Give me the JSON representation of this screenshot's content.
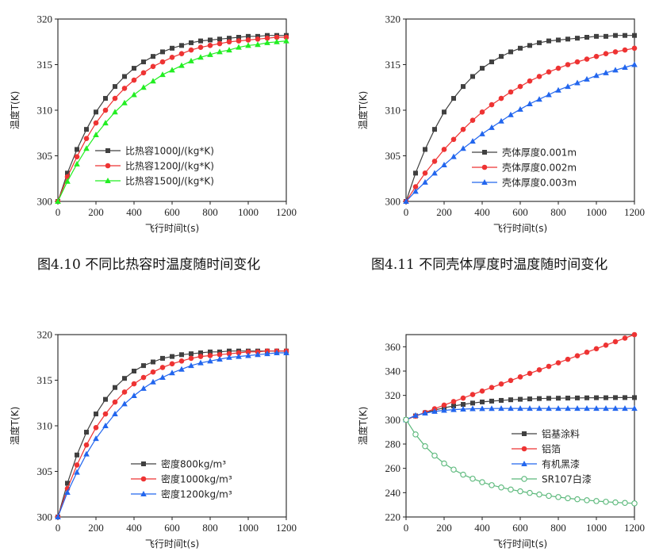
{
  "captions": [
    "图4.10 不同比热容时温度随时间变化",
    "图4.11 不同壳体厚度时温度随时间变化"
  ],
  "colors": {
    "black": "#404040",
    "red": "#ee3333",
    "green": "#22ee22",
    "blue": "#2266ee",
    "mint": "#5ab87a"
  },
  "chart_data": [
    {
      "type": "line",
      "xlabel": "飞行时间t(s)",
      "ylabel": "温度T(K)",
      "xlim": [
        0,
        1200
      ],
      "ylim": [
        300,
        320
      ],
      "xticks": [
        0,
        200,
        400,
        600,
        800,
        1000,
        1200
      ],
      "yticks": [
        300,
        305,
        310,
        315,
        320
      ],
      "legend_position": "bottom-right",
      "x": [
        0,
        50,
        100,
        150,
        200,
        250,
        300,
        350,
        400,
        450,
        500,
        550,
        600,
        650,
        700,
        750,
        800,
        850,
        900,
        950,
        1000,
        1050,
        1100,
        1150,
        1200
      ],
      "series": [
        {
          "name": "比热容1000J/(kg*K)",
          "color": "black",
          "marker": "square",
          "values": [
            300.0,
            303.1,
            305.7,
            307.9,
            309.8,
            311.3,
            312.6,
            313.7,
            314.6,
            315.3,
            315.9,
            316.4,
            316.8,
            317.1,
            317.4,
            317.6,
            317.7,
            317.8,
            317.9,
            318.0,
            318.1,
            318.1,
            318.2,
            318.2,
            318.2
          ]
        },
        {
          "name": "比热容1200J/(kg*K)",
          "color": "red",
          "marker": "circle",
          "values": [
            300.0,
            302.7,
            304.9,
            306.9,
            308.6,
            310.0,
            311.3,
            312.4,
            313.3,
            314.1,
            314.8,
            315.3,
            315.8,
            316.2,
            316.6,
            316.9,
            317.1,
            317.3,
            317.5,
            317.6,
            317.7,
            317.8,
            317.9,
            318.0,
            318.0
          ]
        },
        {
          "name": "比热容1500J/(kg*K)",
          "color": "green",
          "marker": "triangle",
          "values": [
            300.0,
            302.2,
            304.1,
            305.8,
            307.3,
            308.6,
            309.8,
            310.8,
            311.7,
            312.5,
            313.2,
            313.9,
            314.4,
            314.9,
            315.4,
            315.8,
            316.1,
            316.4,
            316.6,
            316.9,
            317.1,
            317.2,
            317.4,
            317.5,
            317.6
          ]
        }
      ]
    },
    {
      "type": "line",
      "xlabel": "飞行时间t(s)",
      "ylabel": "温度T(K)",
      "xlim": [
        0,
        1200
      ],
      "ylim": [
        300,
        320
      ],
      "xticks": [
        0,
        200,
        400,
        600,
        800,
        1000,
        1200
      ],
      "yticks": [
        300,
        305,
        310,
        315,
        320
      ],
      "legend_position": "bottom-right",
      "x": [
        0,
        50,
        100,
        150,
        200,
        250,
        300,
        350,
        400,
        450,
        500,
        550,
        600,
        650,
        700,
        750,
        800,
        850,
        900,
        950,
        1000,
        1050,
        1100,
        1150,
        1200
      ],
      "series": [
        {
          "name": "壳体厚度0.001m",
          "color": "black",
          "marker": "square",
          "values": [
            300.0,
            303.1,
            305.7,
            307.9,
            309.8,
            311.3,
            312.6,
            313.7,
            314.6,
            315.3,
            315.9,
            316.4,
            316.8,
            317.1,
            317.4,
            317.6,
            317.7,
            317.8,
            317.9,
            318.0,
            318.1,
            318.1,
            318.2,
            318.2,
            318.2
          ]
        },
        {
          "name": "壳体厚度0.002m",
          "color": "red",
          "marker": "circle",
          "values": [
            300.0,
            301.6,
            303.1,
            304.4,
            305.7,
            306.8,
            307.9,
            308.9,
            309.8,
            310.6,
            311.3,
            312.0,
            312.6,
            313.2,
            313.7,
            314.2,
            314.6,
            315.0,
            315.3,
            315.6,
            315.9,
            316.2,
            316.4,
            316.6,
            316.8
          ]
        },
        {
          "name": "壳体厚度0.003m",
          "color": "blue",
          "marker": "triangle",
          "values": [
            300.0,
            301.1,
            302.1,
            303.1,
            304.0,
            304.9,
            305.8,
            306.6,
            307.4,
            308.1,
            308.8,
            309.5,
            310.1,
            310.7,
            311.2,
            311.7,
            312.2,
            312.6,
            313.0,
            313.4,
            313.8,
            314.1,
            314.4,
            314.7,
            315.0
          ]
        }
      ]
    },
    {
      "type": "line",
      "xlabel": "飞行时间t(s)",
      "ylabel": "温度T(K)",
      "xlim": [
        0,
        1200
      ],
      "ylim": [
        300,
        320
      ],
      "xticks": [
        0,
        200,
        400,
        600,
        800,
        1000,
        1200
      ],
      "yticks": [
        300,
        305,
        310,
        315,
        320
      ],
      "legend_position": "bottom-right",
      "x": [
        0,
        50,
        100,
        150,
        200,
        250,
        300,
        350,
        400,
        450,
        500,
        550,
        600,
        650,
        700,
        750,
        800,
        850,
        900,
        950,
        1000,
        1050,
        1100,
        1150,
        1200
      ],
      "series": [
        {
          "name": "密度800kg/m³",
          "color": "black",
          "marker": "square",
          "values": [
            300.0,
            303.7,
            306.8,
            309.3,
            311.3,
            312.9,
            314.2,
            315.2,
            316.0,
            316.6,
            317.0,
            317.4,
            317.6,
            317.8,
            317.9,
            318.0,
            318.1,
            318.1,
            318.2,
            318.2,
            318.2,
            318.2,
            318.2,
            318.2,
            318.2
          ]
        },
        {
          "name": "密度1000kg/m³",
          "color": "red",
          "marker": "circle",
          "values": [
            300.0,
            303.1,
            305.7,
            307.9,
            309.8,
            311.3,
            312.6,
            313.7,
            314.6,
            315.3,
            315.9,
            316.4,
            316.8,
            317.1,
            317.4,
            317.6,
            317.7,
            317.8,
            317.9,
            318.0,
            318.1,
            318.1,
            318.2,
            318.2,
            318.2
          ]
        },
        {
          "name": "密度1200kg/m³",
          "color": "blue",
          "marker": "triangle",
          "values": [
            300.0,
            302.7,
            304.9,
            306.9,
            308.6,
            310.0,
            311.3,
            312.4,
            313.3,
            314.1,
            314.8,
            315.3,
            315.8,
            316.2,
            316.6,
            316.9,
            317.1,
            317.3,
            317.5,
            317.6,
            317.7,
            317.8,
            317.9,
            318.0,
            318.0
          ]
        }
      ]
    },
    {
      "type": "line",
      "xlabel": "飞行时间t(s)",
      "ylabel": "温度T(K)",
      "xlim": [
        0,
        1200
      ],
      "ylim": [
        220,
        370
      ],
      "xticks": [
        0,
        200,
        400,
        600,
        800,
        1000,
        1200
      ],
      "yticks": [
        220,
        240,
        260,
        280,
        300,
        320,
        340,
        360
      ],
      "legend_position": "bottom-right",
      "x": [
        0,
        50,
        100,
        150,
        200,
        250,
        300,
        350,
        400,
        450,
        500,
        550,
        600,
        650,
        700,
        750,
        800,
        850,
        900,
        950,
        1000,
        1050,
        1100,
        1150,
        1200
      ],
      "series": [
        {
          "name": "铝基涂料",
          "color": "black",
          "marker": "square",
          "values": [
            300.0,
            303.1,
            305.7,
            307.9,
            309.8,
            311.3,
            312.6,
            313.7,
            314.6,
            315.3,
            315.9,
            316.4,
            316.8,
            317.1,
            317.4,
            317.6,
            317.7,
            317.8,
            317.9,
            318.0,
            318.1,
            318.1,
            318.2,
            318.2,
            318.2
          ]
        },
        {
          "name": "铝箔",
          "color": "red",
          "marker": "circle",
          "values": [
            300.0,
            303.0,
            306.0,
            309.0,
            312.0,
            314.9,
            317.8,
            320.7,
            323.6,
            326.5,
            329.4,
            332.3,
            335.2,
            338.1,
            341.0,
            343.9,
            346.8,
            349.7,
            352.6,
            355.5,
            358.4,
            361.3,
            364.2,
            367.1,
            370.0
          ]
        },
        {
          "name": "有机黑漆",
          "color": "blue",
          "marker": "triangle",
          "values": [
            300.0,
            303.6,
            305.4,
            306.8,
            307.7,
            308.3,
            308.7,
            309.0,
            309.1,
            309.2,
            309.3,
            309.3,
            309.3,
            309.3,
            309.3,
            309.3,
            309.3,
            309.3,
            309.3,
            309.3,
            309.3,
            309.3,
            309.3,
            309.3,
            309.3
          ]
        },
        {
          "name": "SR107白漆",
          "color": "mint",
          "marker": "open-circle",
          "values": [
            300.0,
            287.9,
            278.2,
            270.5,
            264.0,
            259.0,
            254.8,
            251.5,
            248.6,
            246.2,
            244.3,
            242.6,
            241.1,
            239.8,
            238.5,
            237.4,
            236.4,
            235.4,
            234.6,
            233.8,
            233.1,
            232.5,
            232.0,
            231.6,
            231.2
          ]
        }
      ]
    }
  ]
}
